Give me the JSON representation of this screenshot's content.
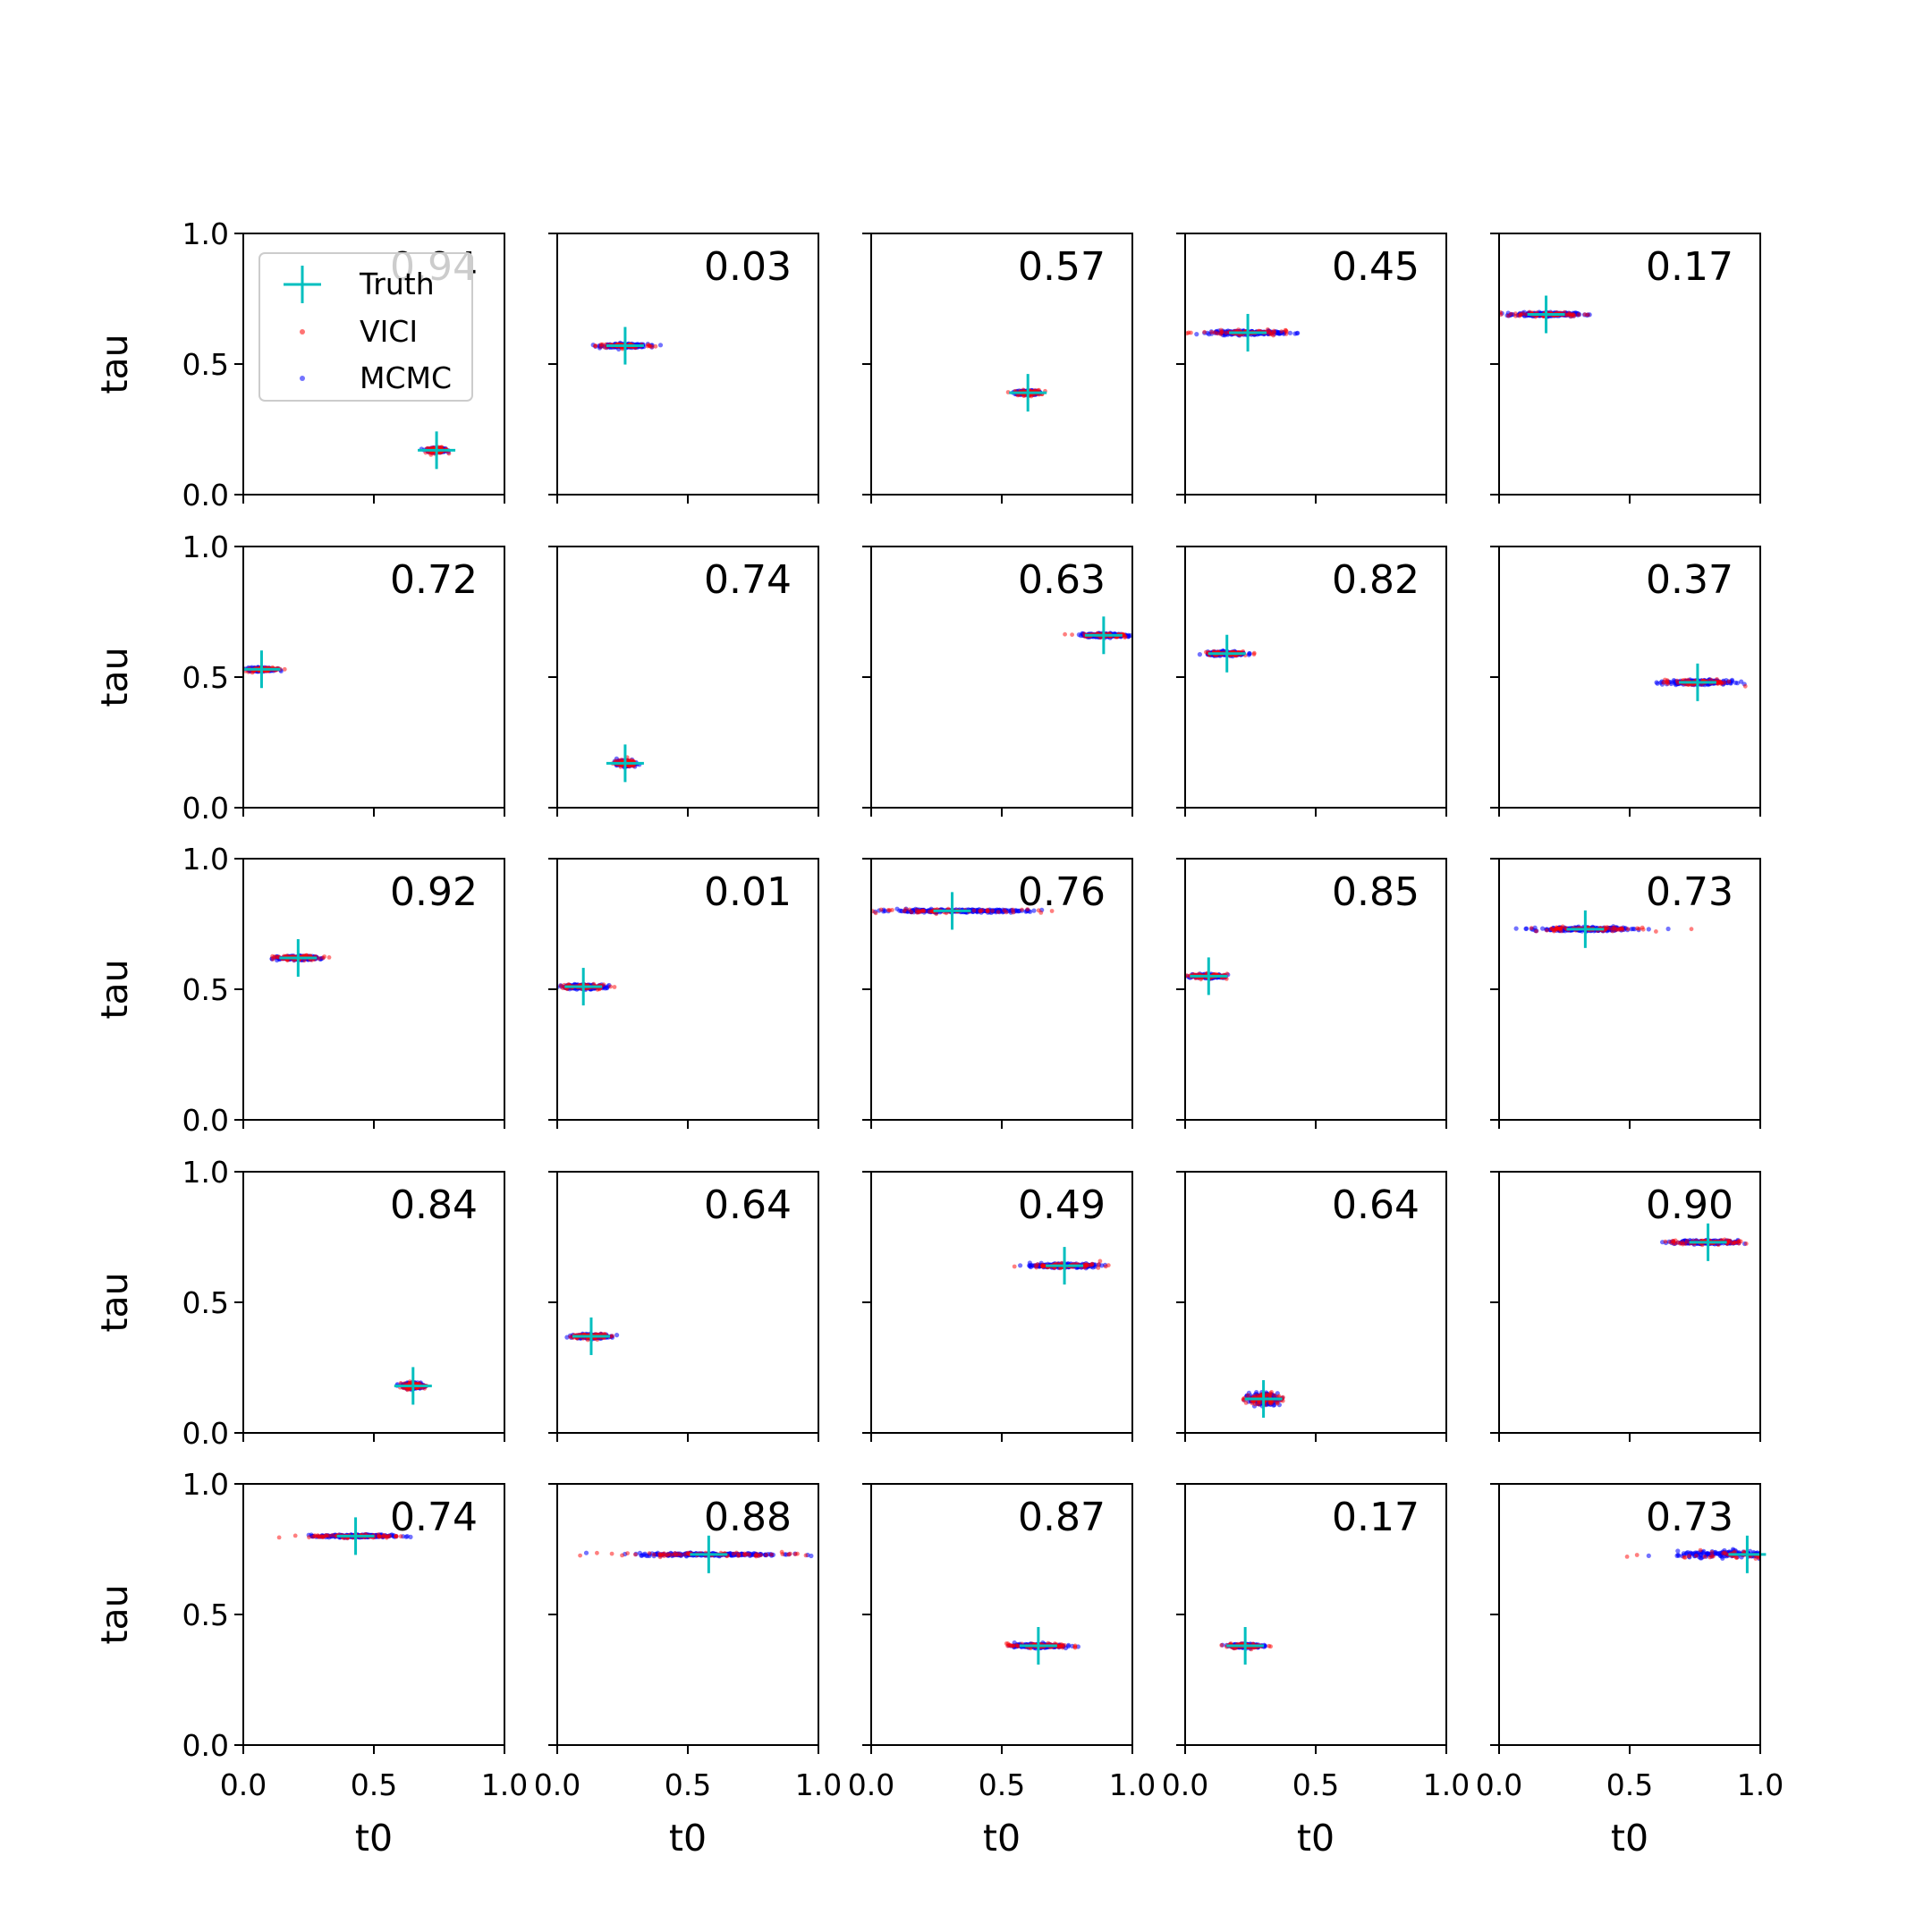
{
  "chart_data": {
    "type": "scatter",
    "layout": "5x5 grid of subplots",
    "xlabel": "t0",
    "ylabel": "tau",
    "xlim": [
      0.0,
      1.0
    ],
    "ylim": [
      0.0,
      1.0
    ],
    "x_ticks": [
      "0.0",
      "0.5",
      "1.0"
    ],
    "y_ticks": [
      "0.0",
      "0.5",
      "1.0"
    ],
    "grid": false,
    "legend": {
      "placement": "upper-left of first subplot",
      "entries": [
        {
          "name": "Truth",
          "marker": "plus",
          "color": "#00bfbf"
        },
        {
          "name": "VICI",
          "marker": "dot",
          "color": "#ff0000"
        },
        {
          "name": "MCMC",
          "marker": "dot",
          "color": "#0000ff"
        }
      ]
    },
    "panels": [
      {
        "label": "0.94",
        "truth": [
          0.74,
          0.17
        ],
        "spread": [
          0.05,
          0.012
        ]
      },
      {
        "label": "0.03",
        "truth": [
          0.26,
          0.57
        ],
        "spread": [
          0.13,
          0.01
        ]
      },
      {
        "label": "0.57",
        "truth": [
          0.6,
          0.39
        ],
        "spread": [
          0.06,
          0.012
        ]
      },
      {
        "label": "0.45",
        "truth": [
          0.24,
          0.62
        ],
        "spread": [
          0.21,
          0.01
        ]
      },
      {
        "label": "0.17",
        "truth": [
          0.18,
          0.69
        ],
        "spread": [
          0.17,
          0.01
        ]
      },
      {
        "label": "0.72",
        "truth": [
          0.07,
          0.53
        ],
        "spread": [
          0.08,
          0.01
        ]
      },
      {
        "label": "0.74",
        "truth": [
          0.26,
          0.17
        ],
        "spread": [
          0.05,
          0.015
        ]
      },
      {
        "label": "0.63",
        "truth": [
          0.89,
          0.66
        ],
        "spread": [
          0.12,
          0.01
        ]
      },
      {
        "label": "0.82",
        "truth": [
          0.16,
          0.59
        ],
        "spread": [
          0.11,
          0.01
        ]
      },
      {
        "label": "0.37",
        "truth": [
          0.76,
          0.48
        ],
        "spread": [
          0.17,
          0.012
        ]
      },
      {
        "label": "0.92",
        "truth": [
          0.21,
          0.62
        ],
        "spread": [
          0.11,
          0.01
        ]
      },
      {
        "label": "0.01",
        "truth": [
          0.1,
          0.51
        ],
        "spread": [
          0.12,
          0.012
        ]
      },
      {
        "label": "0.76",
        "truth": [
          0.31,
          0.8
        ],
        "spread": [
          0.43,
          0.008
        ]
      },
      {
        "label": "0.85",
        "truth": [
          0.09,
          0.55
        ],
        "spread": [
          0.09,
          0.01
        ]
      },
      {
        "label": "0.73",
        "truth": [
          0.33,
          0.73
        ],
        "spread": [
          0.27,
          0.01
        ]
      },
      {
        "label": "0.84",
        "truth": [
          0.65,
          0.18
        ],
        "spread": [
          0.06,
          0.015
        ]
      },
      {
        "label": "0.64",
        "truth": [
          0.13,
          0.37
        ],
        "spread": [
          0.09,
          0.012
        ]
      },
      {
        "label": "0.49",
        "truth": [
          0.74,
          0.64
        ],
        "spread": [
          0.17,
          0.01
        ]
      },
      {
        "label": "0.64",
        "truth": [
          0.3,
          0.13
        ],
        "spread": [
          0.08,
          0.03
        ]
      },
      {
        "label": "0.90",
        "truth": [
          0.8,
          0.73
        ],
        "spread": [
          0.18,
          0.01
        ]
      },
      {
        "label": "0.74",
        "truth": [
          0.43,
          0.8
        ],
        "spread": [
          0.21,
          0.008
        ]
      },
      {
        "label": "0.88",
        "truth": [
          0.58,
          0.73
        ],
        "spread": [
          0.42,
          0.008
        ]
      },
      {
        "label": "0.87",
        "truth": [
          0.64,
          0.38
        ],
        "spread": [
          0.14,
          0.01
        ]
      },
      {
        "label": "0.17",
        "truth": [
          0.23,
          0.38
        ],
        "spread": [
          0.09,
          0.01
        ]
      },
      {
        "label": "0.73",
        "truth": [
          0.95,
          0.73
        ],
        "spread": [
          0.4,
          0.018
        ]
      }
    ]
  }
}
